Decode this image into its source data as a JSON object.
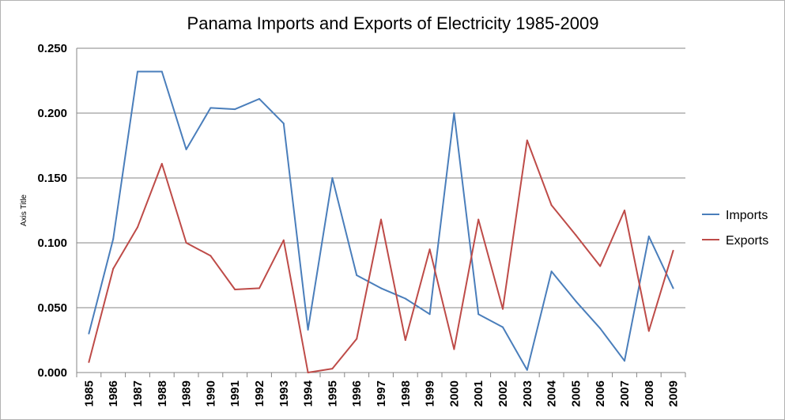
{
  "chart_data": {
    "type": "line",
    "title": "Panama Imports and Exports of Electricity 1985-2009",
    "xlabel": "",
    "ylabel": "Axis Title",
    "ylim": [
      0,
      0.25
    ],
    "yticks": [
      "0.000",
      "0.050",
      "0.100",
      "0.150",
      "0.200",
      "0.250"
    ],
    "grid": true,
    "legend_position": "right",
    "categories": [
      "1985",
      "1986",
      "1987",
      "1988",
      "1989",
      "1990",
      "1991",
      "1992",
      "1993",
      "1994",
      "1995",
      "1996",
      "1997",
      "1998",
      "1999",
      "2000",
      "2001",
      "2002",
      "2003",
      "2004",
      "2005",
      "2006",
      "2007",
      "2008",
      "2009"
    ],
    "series": [
      {
        "name": "Imports",
        "color": "#4a7ebb",
        "values": [
          0.03,
          0.103,
          0.232,
          0.232,
          0.172,
          0.204,
          0.203,
          0.211,
          0.192,
          0.033,
          0.15,
          0.075,
          0.065,
          0.057,
          0.045,
          0.2,
          0.045,
          0.035,
          0.002,
          0.078,
          0.055,
          0.034,
          0.009,
          0.105,
          0.065
        ]
      },
      {
        "name": "Exports",
        "color": "#be4b48",
        "values": [
          0.008,
          0.08,
          0.112,
          0.161,
          0.1,
          0.09,
          0.064,
          0.065,
          0.102,
          0.0,
          0.003,
          0.026,
          0.118,
          0.025,
          0.095,
          0.018,
          0.118,
          0.049,
          0.179,
          0.129,
          0.106,
          0.082,
          0.125,
          0.032,
          0.094
        ]
      }
    ]
  }
}
